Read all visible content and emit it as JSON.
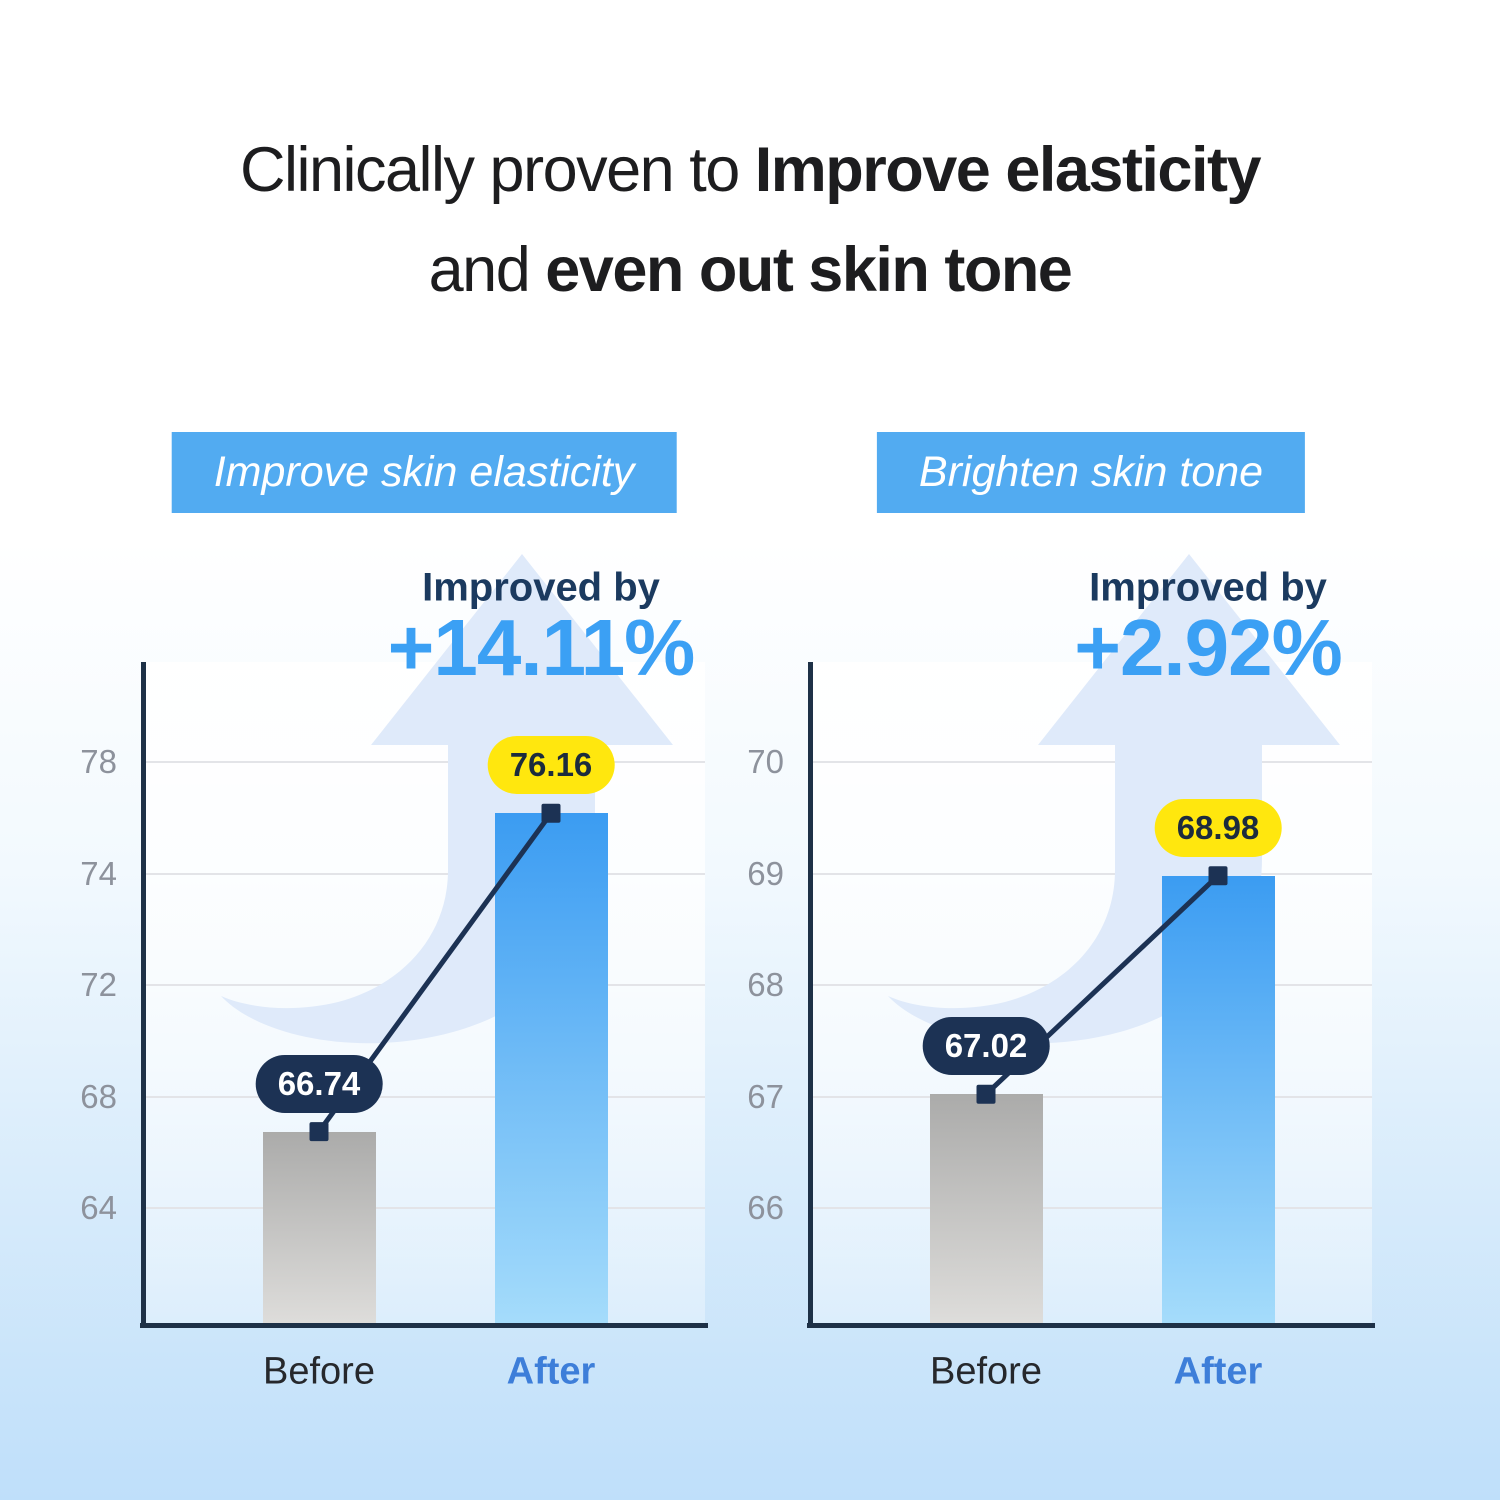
{
  "title": {
    "line1": [
      {
        "text": "Clinically proven to ",
        "bold": false
      },
      {
        "text": "Improve elasticity",
        "bold": true
      }
    ],
    "line2": [
      {
        "text": "and ",
        "bold": false
      },
      {
        "text": "even out skin tone",
        "bold": true
      }
    ]
  },
  "colors": {
    "banner_blue": "#52abf1",
    "accent_blue": "#3ba0f4",
    "navy": "#1c3254",
    "header_navy": "#1b3a5f",
    "bar_blue_top": "#3b9cf2",
    "bar_blue_bottom": "#a5dcfb",
    "bar_gray_top": "#ababaa",
    "bar_gray_bottom": "#dedddb",
    "pill_yellow": "#ffe70e",
    "pill_yellow_text": "#1c2b3d",
    "pill_navy_text": "#ffffff",
    "tick_gray": "#8d929c",
    "before_label_dark": "#26282c",
    "after_label_blue": "#3d7ed9",
    "axis_navy": "#1e3147",
    "gridline_gray": "#e3e4e8",
    "arrow_fill": "#dfeafa"
  },
  "chart_data": [
    {
      "type": "bar",
      "banner": "Improve skin elasticity",
      "improved_label": "Improved by",
      "improved_value": "+14.11%",
      "categories": [
        "Before",
        "After"
      ],
      "values": [
        66.74,
        76.16
      ],
      "value_labels": [
        "66.74",
        "76.16"
      ],
      "yticks": [
        78,
        74,
        72,
        68,
        64
      ],
      "grid": true,
      "legend_position": "none"
    },
    {
      "type": "bar",
      "banner": "Brighten skin tone",
      "improved_label": "Improved by",
      "improved_value": "+2.92%",
      "categories": [
        "Before",
        "After"
      ],
      "values": [
        67.02,
        68.98
      ],
      "value_labels": [
        "67.02",
        "68.98"
      ],
      "yticks": [
        70,
        69,
        68,
        67,
        66
      ],
      "grid": true,
      "legend_position": "none"
    }
  ]
}
